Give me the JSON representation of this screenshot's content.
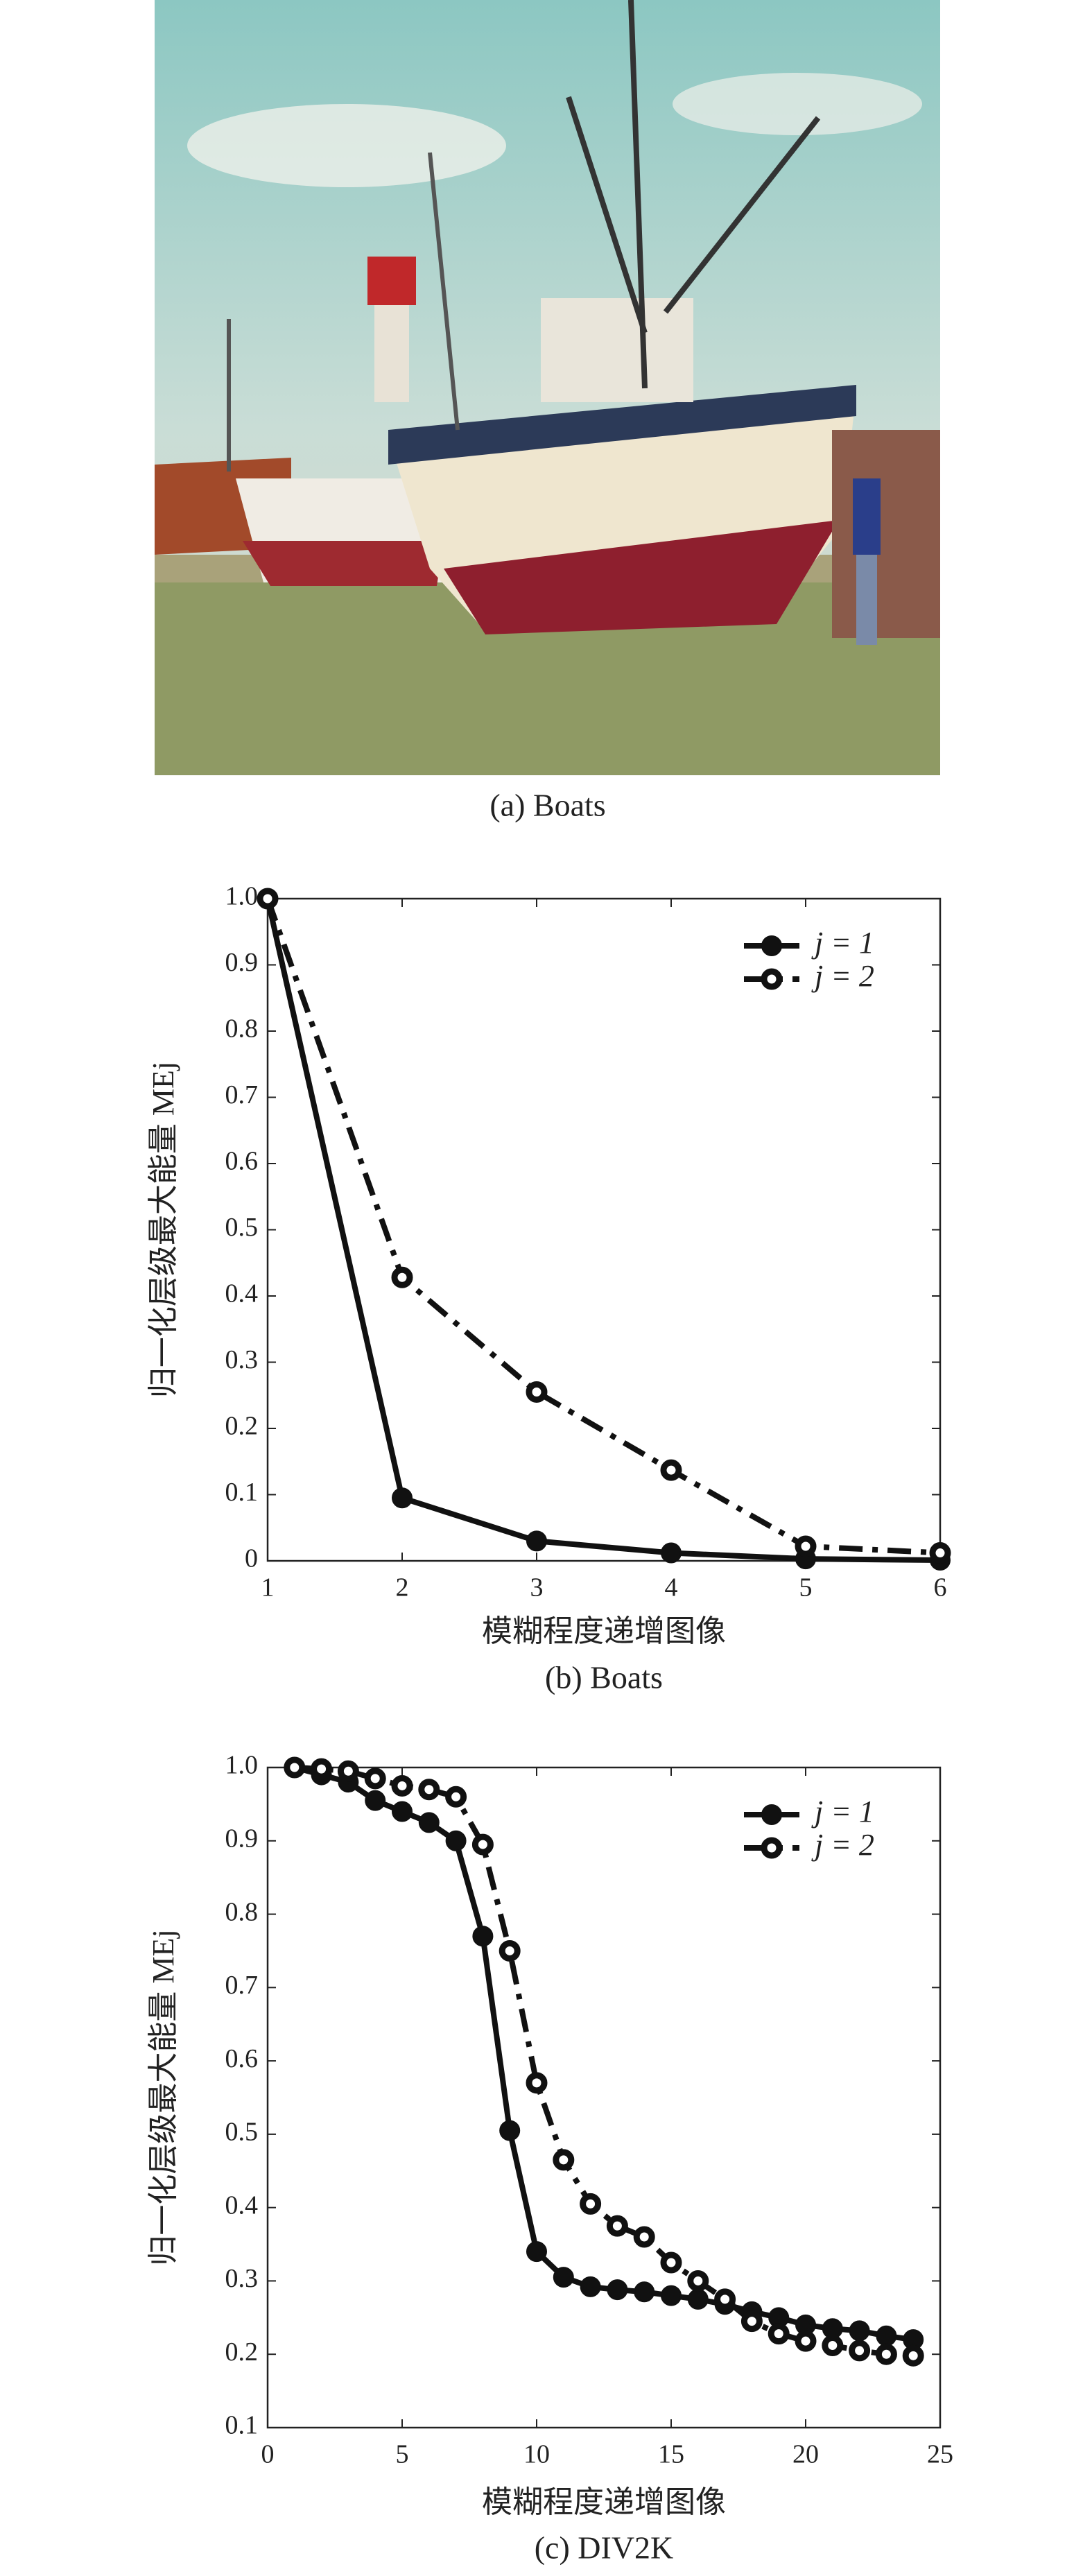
{
  "figure": {
    "image_caption": "(a) Boats"
  },
  "chart_data": [
    {
      "type": "line",
      "caption": "(b) Boats",
      "xlabel": "模糊程度递增图像",
      "ylabel": "归一化层级最大能量 MEj",
      "x": [
        1,
        2,
        3,
        4,
        5,
        6
      ],
      "series": [
        {
          "name": "j = 1",
          "color": "#111111",
          "marker": "filled",
          "linestyle": "solid",
          "values": [
            1.0,
            0.095,
            0.03,
            0.012,
            0.003,
            0.001
          ]
        },
        {
          "name": "j = 2",
          "color": "#111111",
          "marker": "open",
          "linestyle": "dashdot",
          "values": [
            1.0,
            0.428,
            0.255,
            0.137,
            0.022,
            0.012
          ]
        }
      ],
      "xlim": [
        1,
        6
      ],
      "xticks": [
        1,
        2,
        3,
        4,
        5,
        6
      ],
      "ylim": [
        0,
        1
      ],
      "yticks": [
        0,
        0.1,
        0.2,
        0.3,
        0.4,
        0.5,
        0.6,
        0.7,
        0.8,
        0.9,
        {
          "value": 1,
          "label": "1.0"
        }
      ],
      "legend": "upper right"
    },
    {
      "type": "line",
      "caption": "(c) DIV2K",
      "xlabel": "模糊程度递增图像",
      "ylabel": "归一化层级最大能量 MEj",
      "x": [
        1,
        2,
        3,
        4,
        5,
        6,
        7,
        8,
        9,
        10,
        11,
        12,
        13,
        14,
        15,
        16,
        17,
        18,
        19,
        20,
        21,
        22,
        23,
        24
      ],
      "series": [
        {
          "name": "j = 1",
          "color": "#111111",
          "marker": "filled",
          "linestyle": "solid",
          "values": [
            1.0,
            0.99,
            0.98,
            0.955,
            0.94,
            0.925,
            0.9,
            0.77,
            0.505,
            0.34,
            0.305,
            0.292,
            0.288,
            0.285,
            0.28,
            0.275,
            0.268,
            0.258,
            0.25,
            0.24,
            0.235,
            0.232,
            0.225,
            0.22
          ]
        },
        {
          "name": "j = 2",
          "color": "#111111",
          "marker": "open",
          "linestyle": "dashdot",
          "values": [
            1.0,
            0.998,
            0.995,
            0.985,
            0.975,
            0.97,
            0.96,
            0.895,
            0.75,
            0.57,
            0.465,
            0.405,
            0.375,
            0.36,
            0.325,
            0.3,
            0.275,
            0.245,
            0.228,
            0.218,
            0.212,
            0.205,
            0.2,
            0.198
          ]
        }
      ],
      "xlim": [
        0,
        25
      ],
      "xticks": [
        0,
        5,
        10,
        15,
        20,
        25
      ],
      "ylim": [
        0.1,
        1
      ],
      "yticks": [
        0.1,
        0.2,
        0.3,
        0.4,
        0.5,
        0.6,
        0.7,
        0.8,
        0.9,
        {
          "value": 1,
          "label": "1.0"
        }
      ],
      "legend": "upper right"
    }
  ]
}
